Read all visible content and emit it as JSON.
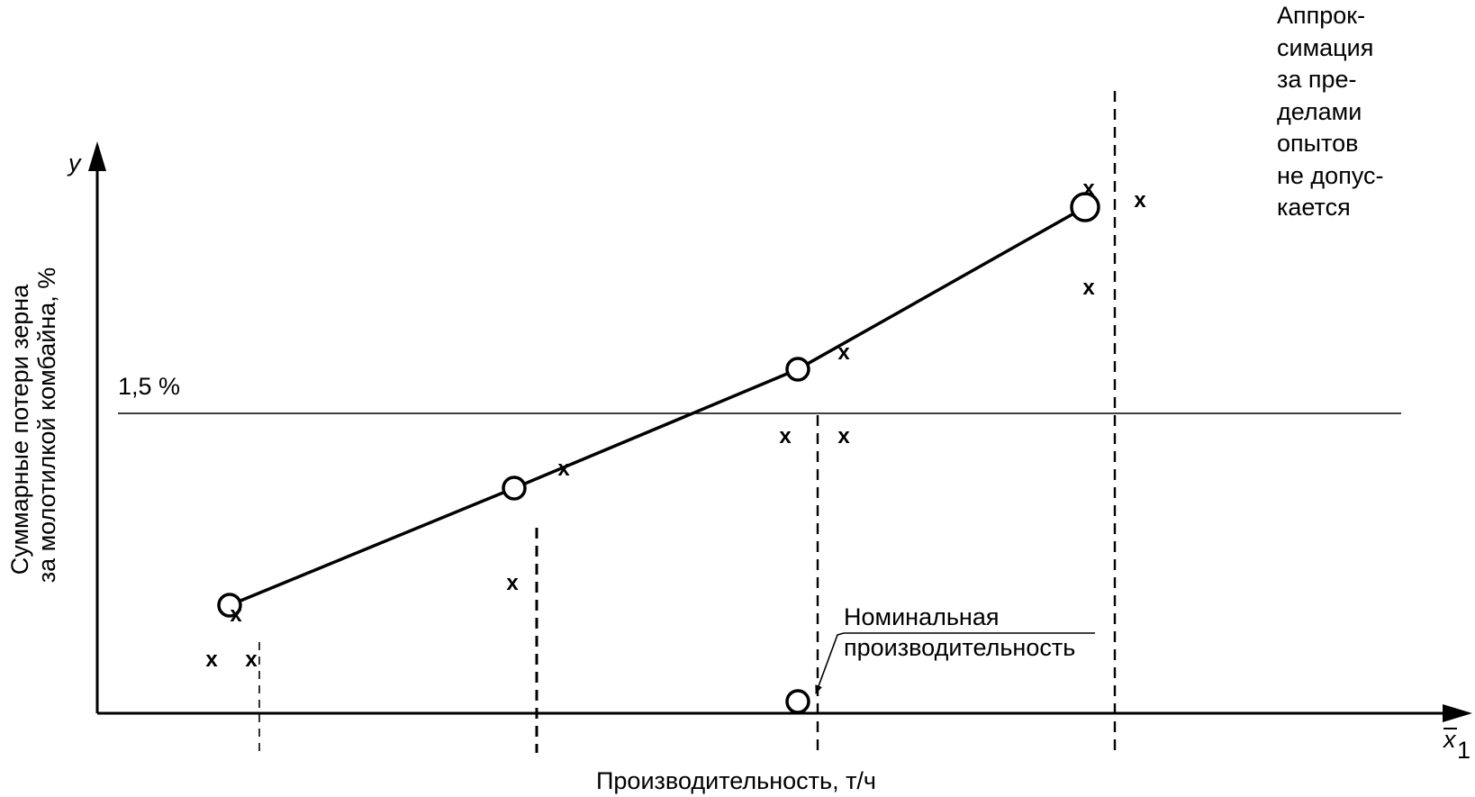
{
  "chart_data": {
    "type": "line",
    "xlabel": "Производительность, т/ч",
    "ylabel": [
      "Суммарные потери зерна",
      "за молотилкой комбайна, %"
    ],
    "x_axis_symbol": "x",
    "x_axis_subscript": "1",
    "y_axis_symbol": "y",
    "threshold": {
      "label": "1,5 %"
    },
    "series": [
      {
        "points": [
          [
            1,
            1
          ],
          [
            2,
            2
          ],
          [
            3,
            3
          ],
          [
            4,
            4
          ]
        ]
      }
    ],
    "nominal_point": {
      "x": 3,
      "label_line1": "Номинальная",
      "label_line2": "производительность"
    },
    "scatter_marks": [
      {
        "label": "x",
        "i": 0
      },
      {
        "label": "x",
        "i": 1
      },
      {
        "label": "x",
        "i": 2
      },
      {
        "label": "x",
        "i": 3
      },
      {
        "label": "x",
        "i": 4
      },
      {
        "label": "x",
        "i": 5
      },
      {
        "label": "x",
        "i": 6
      },
      {
        "label": "x",
        "i": 7
      },
      {
        "label": "x",
        "i": 8
      },
      {
        "label": "x",
        "i": 9
      },
      {
        "label": "x",
        "i": 10
      },
      {
        "label": "x",
        "i": 11
      }
    ],
    "note": "Аппрок-\nсимация\nза пре-\nделами\nопытов\nне допус-\nкается"
  }
}
